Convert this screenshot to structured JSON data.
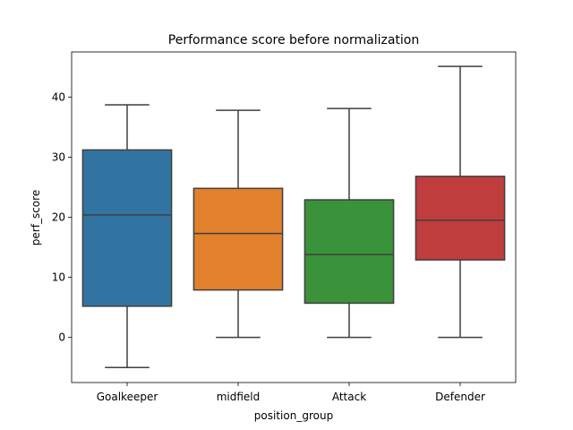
{
  "chart_data": {
    "type": "box",
    "title": "Performance score before normalization",
    "xlabel": "position_group",
    "ylabel": "perf_score",
    "categories": [
      "Goalkeeper",
      "midfield",
      "Attack",
      "Defender"
    ],
    "boxes": [
      {
        "name": "Goalkeeper",
        "whisker_low": -5.0,
        "q1": 5.2,
        "median": 20.4,
        "q3": 31.2,
        "whisker_high": 38.7,
        "color": "#3274a1"
      },
      {
        "name": "midfield",
        "whisker_low": 0.0,
        "q1": 7.9,
        "median": 17.3,
        "q3": 24.8,
        "whisker_high": 37.8,
        "color": "#e1812c"
      },
      {
        "name": "Attack",
        "whisker_low": 0.0,
        "q1": 5.7,
        "median": 13.8,
        "q3": 22.9,
        "whisker_high": 38.1,
        "color": "#3a923a"
      },
      {
        "name": "Defender",
        "whisker_low": 0.0,
        "q1": 12.9,
        "median": 19.5,
        "q3": 26.8,
        "whisker_high": 45.1,
        "color": "#c03d3e"
      }
    ],
    "yticks": [
      0,
      10,
      20,
      30,
      40
    ],
    "ylim": [
      -7.5,
      47.5
    ],
    "grid": false
  }
}
